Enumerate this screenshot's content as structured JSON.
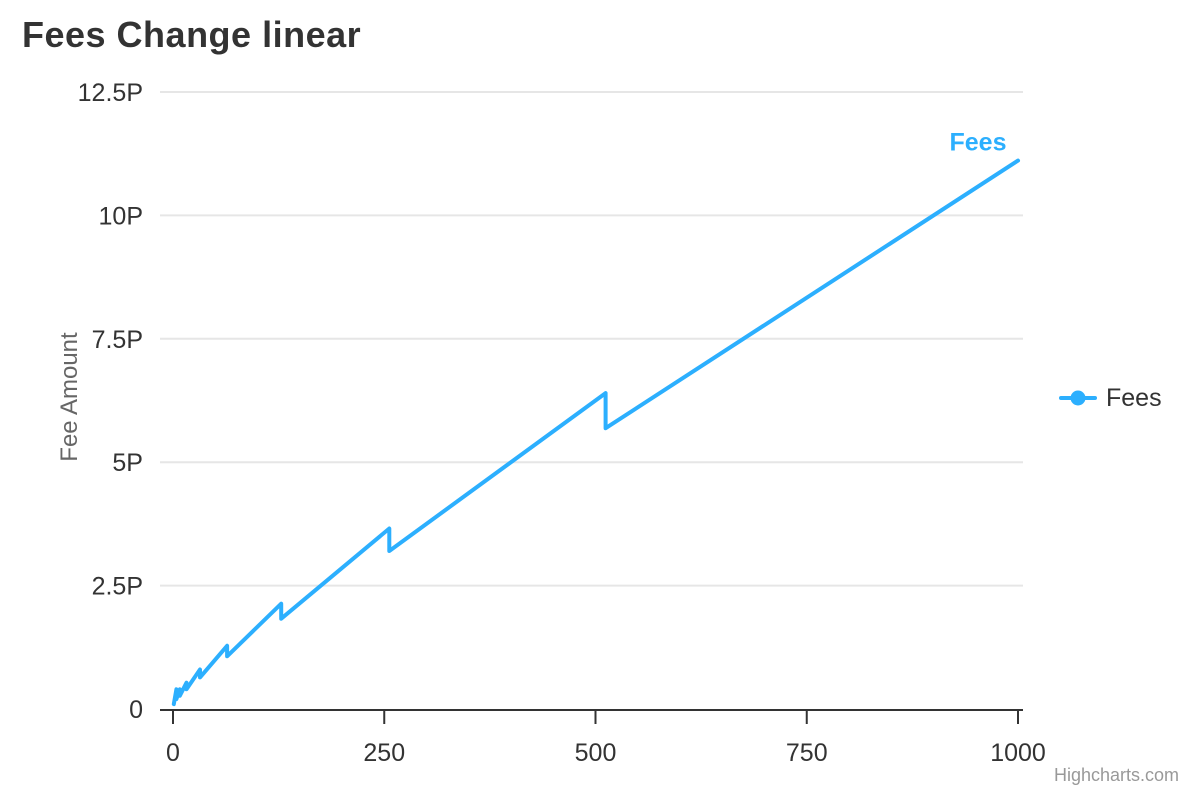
{
  "chart_data": {
    "type": "line",
    "title": "Fees Change linear",
    "xlabel": "",
    "ylabel": "Fee Amount",
    "xlim": [
      0,
      1000
    ],
    "ylim": [
      0,
      12.5
    ],
    "grid": "horizontal",
    "legend_position": "right-middle",
    "x_ticks": [
      {
        "v": 0,
        "label": "0"
      },
      {
        "v": 250,
        "label": "250"
      },
      {
        "v": 500,
        "label": "500"
      },
      {
        "v": 750,
        "label": "750"
      },
      {
        "v": 1000,
        "label": "1000"
      }
    ],
    "y_ticks": [
      {
        "v": 0,
        "label": "0"
      },
      {
        "v": 2.5,
        "label": "2.5P"
      },
      {
        "v": 5,
        "label": "5P"
      },
      {
        "v": 7.5,
        "label": "7.5P"
      },
      {
        "v": 10,
        "label": "10P"
      },
      {
        "v": 12.5,
        "label": "12.5P"
      }
    ],
    "series": [
      {
        "name": "Fees",
        "color": "#2caffe",
        "marker": "circle",
        "on_chart_label": "Fees",
        "data": [
          [
            1,
            0.1
          ],
          [
            4,
            0.4
          ],
          [
            4,
            0.2
          ],
          [
            8,
            0.4
          ],
          [
            8,
            0.2667
          ],
          [
            16,
            0.5333
          ],
          [
            16,
            0.4
          ],
          [
            32,
            0.8
          ],
          [
            32,
            0.64
          ],
          [
            64,
            1.28
          ],
          [
            64,
            1.0667
          ],
          [
            128,
            2.1333
          ],
          [
            128,
            1.8286
          ],
          [
            256,
            3.6571
          ],
          [
            256,
            3.2
          ],
          [
            512,
            6.4
          ],
          [
            512,
            5.6889
          ],
          [
            1000,
            11.1111
          ]
        ]
      }
    ],
    "colors": {
      "series_blue": "#2caffe",
      "title_text": "#333333",
      "axis_label_text": "#333333",
      "y_axis_title_text": "#666666",
      "gridline": "#e6e6e6",
      "axis_line": "#333333",
      "credits_text": "#999999"
    },
    "credits": "Highcharts.com"
  }
}
